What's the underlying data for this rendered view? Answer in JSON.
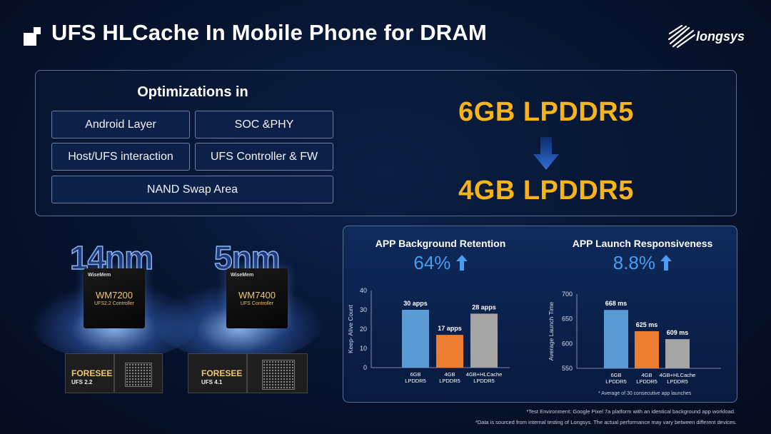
{
  "header": {
    "title": "UFS HLCache In Mobile Phone for DRAM",
    "logo_text": "longsys"
  },
  "optimizations": {
    "title": "Optimizations in",
    "items": [
      "Android Layer",
      "SOC &PHY",
      "Host/UFS interaction",
      "UFS Controller & FW",
      "NAND Swap Area"
    ]
  },
  "memory": {
    "from": "6GB LPDDR5",
    "to": "4GB LPDDR5",
    "accent": "#f7b41a"
  },
  "chips": [
    {
      "process": "14nm",
      "brand": "WiseMem",
      "model": "WM7200",
      "sub": "UFS2.2 Controller",
      "card_brand": "FORESEE",
      "card_sub": "UFS 2.2"
    },
    {
      "process": "5nm",
      "brand": "WiseMem",
      "model": "WM7400",
      "sub": "UFS Controller",
      "card_brand": "FORESEE",
      "card_sub": "UFS 4.1"
    }
  ],
  "retention": {
    "title": "APP Background Retention",
    "improvement": "64%",
    "chart_data": {
      "type": "bar",
      "categories": [
        "6GB LPDDR5",
        "4GB LPDDR5",
        "4GB+HLCache LPDDR5"
      ],
      "category_lines": [
        [
          "6GB",
          "LPDDR5"
        ],
        [
          "4GB",
          "LPDDR5"
        ],
        [
          "4GB+HLCache",
          "LPDDR5"
        ]
      ],
      "values": [
        30,
        17,
        28
      ],
      "data_labels": [
        "30 apps",
        "17 apps",
        "28 apps"
      ],
      "colors": [
        "#5b9bd5",
        "#ed7d31",
        "#a5a5a5"
      ],
      "ylabel": "Keep- Alive Count",
      "ylim": [
        0,
        40
      ],
      "yticks": [
        "0",
        "10",
        "20",
        "30",
        "40"
      ],
      "grid": false
    }
  },
  "launch": {
    "title": "APP Launch Responsiveness",
    "improvement": "8.8%",
    "note": "* Average of 30 consecutive app launches",
    "chart_data": {
      "type": "bar",
      "categories": [
        "6GB LPDDR5",
        "4GB LPDDR5",
        "4GB+HLCache LPDDR5"
      ],
      "category_lines": [
        [
          "6GB",
          "LPDDR5"
        ],
        [
          "4GB",
          "LPDDR5"
        ],
        [
          "4GB+HLCache",
          "LPDDR5"
        ]
      ],
      "values": [
        668,
        625,
        609
      ],
      "data_labels": [
        "668 ms",
        "625 ms",
        "609 ms"
      ],
      "colors": [
        "#5b9bd5",
        "#ed7d31",
        "#a5a5a5"
      ],
      "ylabel": "Average Launch Time",
      "ylim": [
        550,
        700
      ],
      "yticks": [
        "550",
        "600",
        "650",
        "700"
      ],
      "grid": false
    }
  },
  "footnotes": [
    "*Test Environment: Google Pixel 7a platform with an identical background app workload.",
    "*Data is sourced from internal testing of Longsys. The actual performance may vary between different devices."
  ]
}
